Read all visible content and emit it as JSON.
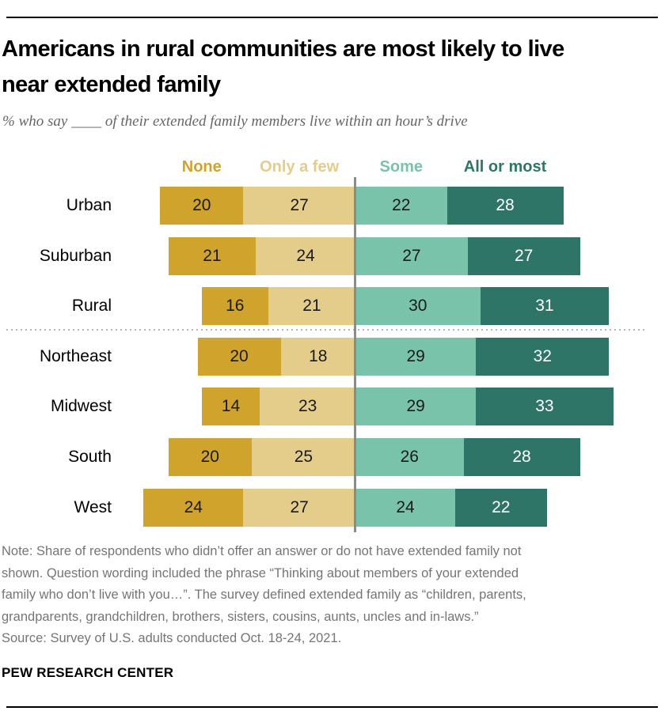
{
  "header": {
    "title_lines": [
      "Americans in rural communities are most likely to live",
      "near extended family"
    ],
    "subtitle": "% who say ____ of their extended family members live within an hour’s drive"
  },
  "chart_data": {
    "type": "bar",
    "variant": "diverging-stacked-horizontal",
    "stack_categories": [
      "None",
      "Only a few",
      "Some",
      "All or most"
    ],
    "stack_colors": [
      "#d0a32c",
      "#e4cc8b",
      "#7ac3ab",
      "#2e7567"
    ],
    "value_text_colors": [
      "#1a1a1a",
      "#1a1a1a",
      "#1a1a1a",
      "#ffffff"
    ],
    "unit": "%",
    "rows": [
      {
        "label": "Urban",
        "values": [
          20,
          27,
          22,
          28
        ]
      },
      {
        "label": "Suburban",
        "values": [
          21,
          24,
          27,
          27
        ]
      },
      {
        "label": "Rural",
        "values": [
          16,
          21,
          30,
          31
        ]
      },
      {
        "label": "Northeast",
        "values": [
          20,
          18,
          29,
          32
        ]
      },
      {
        "label": "Midwest",
        "values": [
          14,
          23,
          29,
          33
        ]
      },
      {
        "label": "South",
        "values": [
          20,
          25,
          26,
          28
        ]
      },
      {
        "label": "West",
        "values": [
          24,
          27,
          24,
          22
        ]
      }
    ],
    "group_separator_after_row": "Rural",
    "layout": {
      "center_line": "between 'Only a few' and 'Some' stacks",
      "legend_position": "top, each label centered over first row's segments",
      "grid": false
    }
  },
  "footer": {
    "note_lines": [
      "Note: Share of respondents who didn’t offer an answer or do not have extended family not",
      "shown. Question wording included the phrase “Thinking about members of your extended",
      "family who don’t live with you…”. The survey defined extended family as “children, parents,",
      "grandparents, grandchildren, brothers, sisters, cousins, aunts, uncles and in-laws.”"
    ],
    "source": "Source: Survey of U.S. adults conducted Oct. 18-24, 2021.",
    "brand": "PEW RESEARCH CENTER"
  }
}
